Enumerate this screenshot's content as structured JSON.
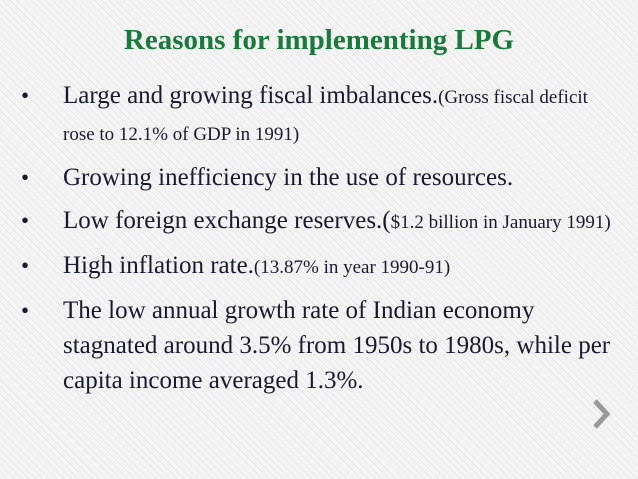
{
  "slide": {
    "title": "Reasons for implementing LPG",
    "bullet_glyph": "•",
    "bullets": [
      {
        "main": "Large and growing fiscal imbalances.",
        "detail": "(Gross fiscal deficit rose to 12.1% of GDP in 1991)"
      },
      {
        "main": "Growing inefficiency in the use of resources.",
        "detail": ""
      },
      {
        "main": "Low foreign exchange reserves.(",
        "detail": "$1.2 billion in January 1991)"
      },
      {
        "main": "High inflation rate.",
        "detail": "(13.87% in year 1990-91)"
      },
      {
        "main": "The low annual growth rate of Indian economy stagnated around 3.5% from 1950s to 1980s, while per capita income averaged 1.3%.",
        "detail": ""
      }
    ]
  },
  "nav": {
    "next_icon": "chevron-right-icon",
    "icon_color": "#9a9a9a"
  },
  "colors": {
    "title": "#1a7a3c",
    "text": "#1a1a2e"
  }
}
